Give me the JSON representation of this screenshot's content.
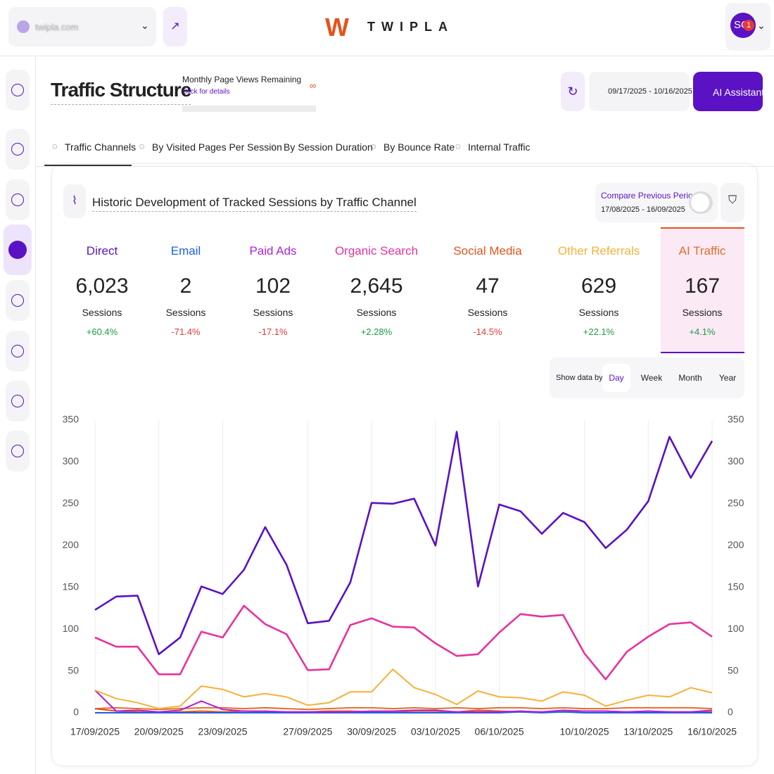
{
  "header": {
    "site": "twipla.com",
    "logo": "TWIPLA",
    "avatar": "SC",
    "badge": "1"
  },
  "page": {
    "title": "Traffic Structure",
    "quota_label": "Monthly Page Views Remaining",
    "quota_link": "Click for details",
    "quota_value": "∞",
    "date_range": "09/17/2025 - 10/16/2025",
    "assistant": "AI Assistant"
  },
  "tabs": [
    "Traffic Channels",
    "By Visited Pages Per Session",
    "By Session Duration",
    "By Bounce Rate",
    "Internal Traffic"
  ],
  "card": {
    "compare_label": "Compare Previous Period",
    "compare_range": "17/08/2025 - 16/09/2025",
    "show_by": "Show data by:",
    "periods": [
      "Day",
      "Week",
      "Month",
      "Year"
    ]
  },
  "kpis": [
    {
      "total": "6,023",
      "unit": "Sessions",
      "change": "+60.4%"
    },
    {
      "total": "2",
      "unit": "Sessions",
      "change": "-71.4%"
    },
    {
      "total": "102",
      "unit": "Sessions",
      "change": "-17.1%"
    },
    {
      "total": "2,645",
      "unit": "Sessions",
      "change": "+2.28%"
    },
    {
      "total": "47",
      "unit": "Sessions",
      "change": "-14.5%"
    },
    {
      "total": "629",
      "unit": "Sessions",
      "change": "+22.1%"
    },
    {
      "total": "167",
      "unit": "Sessions",
      "change": "+4.1%"
    }
  ],
  "chart_data": {
    "type": "line",
    "title": "Historic Development of Tracked Sessions by Traffic Channel",
    "categories": [
      "17/09/2025",
      null,
      null,
      "20/09/2025",
      null,
      null,
      "23/09/2025",
      null,
      null,
      null,
      "27/09/2025",
      null,
      null,
      "30/09/2025",
      null,
      null,
      "03/10/2025",
      null,
      null,
      "06/10/2025",
      null,
      null,
      null,
      "10/10/2025",
      null,
      null,
      "13/10/2025",
      null,
      null,
      "16/10/2025"
    ],
    "series": [
      {
        "name": "Direct",
        "color": "#5a12c4",
        "values": [
          123,
          139,
          140,
          70,
          90,
          151,
          142,
          171,
          222,
          177,
          107,
          110,
          156,
          251,
          250,
          256,
          200,
          336,
          151,
          249,
          241,
          214,
          239,
          228,
          197,
          219,
          253,
          330,
          281,
          325
        ]
      },
      {
        "name": "Email",
        "color": "#1f5fe0",
        "values": [
          0,
          0,
          0,
          0,
          0,
          0,
          0,
          0,
          0,
          0,
          0,
          0,
          0,
          0,
          0,
          0,
          0,
          0,
          0,
          0,
          1,
          0,
          1,
          0,
          0,
          0,
          0,
          0,
          0,
          0
        ]
      },
      {
        "name": "Paid Ads",
        "color": "#b020e0",
        "values": [
          27,
          2,
          3,
          1,
          3,
          14,
          4,
          2,
          2,
          1,
          1,
          1,
          1,
          2,
          2,
          3,
          3,
          1,
          1,
          1,
          2,
          1,
          3,
          2,
          2,
          1,
          2,
          1,
          1,
          3
        ]
      },
      {
        "name": "Organic Search",
        "color": "#e5339f",
        "values": [
          90,
          79,
          79,
          46,
          46,
          97,
          90,
          128,
          106,
          94,
          51,
          52,
          105,
          113,
          103,
          102,
          83,
          68,
          70,
          96,
          118,
          115,
          117,
          71,
          40,
          73,
          91,
          106,
          108,
          91
        ]
      },
      {
        "name": "Social Media",
        "color": "#e4531c",
        "values": [
          5,
          2,
          1,
          0,
          1,
          2,
          1,
          2,
          1,
          1,
          1,
          2,
          2,
          1,
          1,
          2,
          2,
          1,
          3,
          2,
          1,
          1,
          1,
          2,
          2,
          1,
          2,
          1,
          1,
          1
        ]
      },
      {
        "name": "Other Referrals",
        "color": "#f6b13a",
        "values": [
          27,
          17,
          12,
          5,
          8,
          32,
          28,
          19,
          23,
          19,
          9,
          12,
          25,
          25,
          52,
          30,
          22,
          10,
          26,
          19,
          18,
          14,
          25,
          21,
          8,
          15,
          21,
          19,
          30,
          24
        ]
      },
      {
        "name": "AI Traffic",
        "color": "#e0702a",
        "values": [
          5,
          6,
          5,
          4,
          5,
          6,
          6,
          5,
          6,
          5,
          4,
          5,
          6,
          6,
          5,
          6,
          5,
          6,
          5,
          6,
          6,
          5,
          6,
          5,
          5,
          6,
          6,
          6,
          6,
          5
        ]
      }
    ],
    "ylim": [
      0,
      350
    ],
    "yticks": [
      0,
      50,
      100,
      150,
      200,
      250,
      300,
      350
    ],
    "y2lim": [
      0,
      350
    ],
    "y2ticks": [
      0,
      50,
      100,
      150,
      200,
      250,
      300,
      350
    ],
    "grid": true
  }
}
